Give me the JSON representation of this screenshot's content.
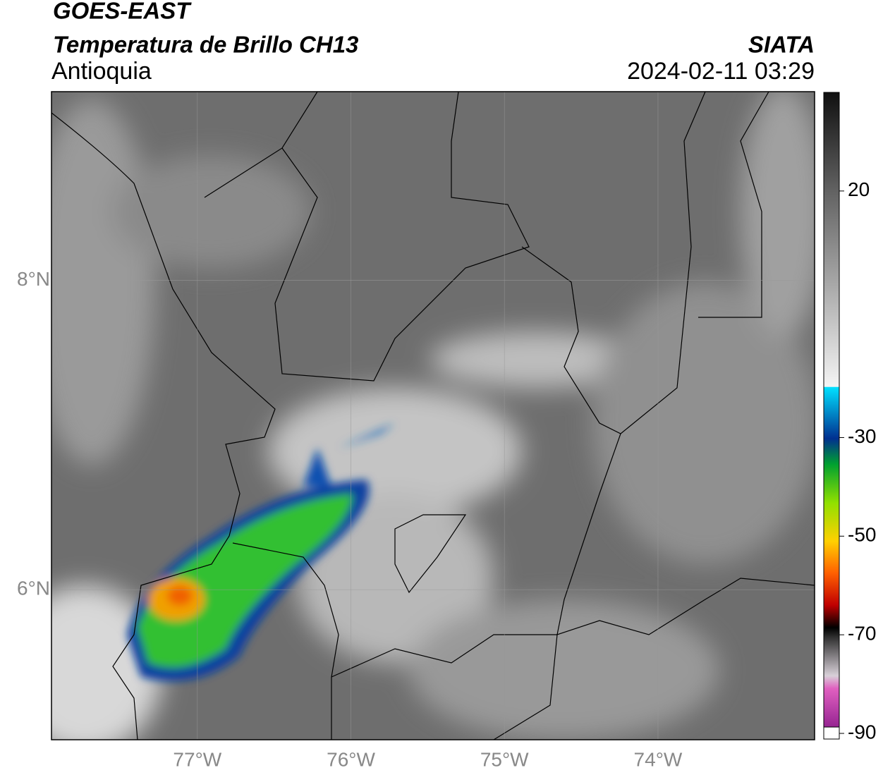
{
  "header": {
    "title": "GOES-EAST",
    "subtitle": "Temperatura de Brillo CH13",
    "region": "Antioquia",
    "source": "SIATA",
    "datetime": "2024-02-11 03:29"
  },
  "map": {
    "xlim": [
      -77.95,
      -72.98
    ],
    "ylim": [
      5.03,
      9.22
    ],
    "xticks": [
      {
        "value": -77,
        "label": "77°W"
      },
      {
        "value": -76,
        "label": "76°W"
      },
      {
        "value": -75,
        "label": "75°W"
      },
      {
        "value": -74,
        "label": "74°W"
      }
    ],
    "yticks": [
      {
        "value": 6,
        "label": "6°N"
      },
      {
        "value": 8,
        "label": "8°N"
      }
    ],
    "grid": true
  },
  "colorbar": {
    "lim": [
      -90,
      40
    ],
    "ticks": [
      20,
      -30,
      -50,
      -70,
      -90
    ]
  }
}
